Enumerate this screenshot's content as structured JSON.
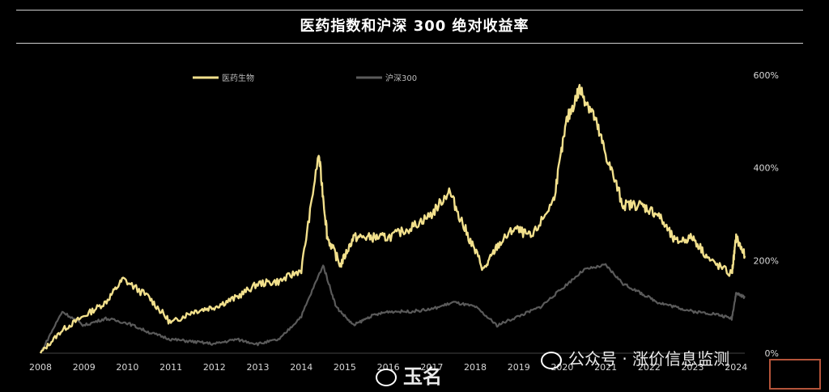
{
  "title": "医药指数和沪深 300 绝对收益率",
  "watermarks": {
    "right_text": "公众号 · 涨价信息监测",
    "center_text": "玉名"
  },
  "chart_data": {
    "type": "line",
    "x_tick_labels": [
      "2008",
      "2009",
      "2010",
      "2011",
      "2012",
      "2013",
      "2014",
      "2015",
      "2016",
      "2017",
      "2018",
      "2019",
      "2020",
      "2021",
      "2022",
      "2023",
      "2024"
    ],
    "y_tick_labels": [
      "0%",
      "200%",
      "400%",
      "600%"
    ],
    "ylim": [
      0,
      600
    ],
    "legend_placement": "top",
    "series": [
      {
        "name": "医药生物",
        "color": "#f2e08c",
        "x": [
          2008.0,
          2008.5,
          2009.0,
          2009.5,
          2009.9,
          2010.5,
          2011.0,
          2011.5,
          2012.0,
          2012.5,
          2013.0,
          2013.5,
          2014.0,
          2014.4,
          2014.6,
          2014.9,
          2015.2,
          2015.6,
          2016.0,
          2016.5,
          2017.0,
          2017.4,
          2017.8,
          2018.2,
          2018.5,
          2018.9,
          2019.3,
          2019.8,
          2020.1,
          2020.4,
          2020.7,
          2021.0,
          2021.4,
          2021.8,
          2022.2,
          2022.6,
          2023.0,
          2023.4,
          2023.9,
          2024.0,
          2024.2
        ],
        "y": [
          0,
          50,
          80,
          110,
          160,
          120,
          65,
          90,
          100,
          120,
          150,
          155,
          180,
          430,
          250,
          190,
          250,
          250,
          250,
          270,
          300,
          350,
          260,
          180,
          230,
          270,
          250,
          330,
          500,
          570,
          520,
          430,
          320,
          320,
          300,
          240,
          250,
          200,
          170,
          250,
          210
        ]
      },
      {
        "name": "沪深300",
        "color": "#5a5a5a",
        "x": [
          2008.0,
          2008.5,
          2009.0,
          2009.5,
          2010.0,
          2010.5,
          2011.0,
          2011.5,
          2012.0,
          2012.5,
          2013.0,
          2013.5,
          2014.0,
          2014.5,
          2014.8,
          2015.2,
          2015.6,
          2016.0,
          2016.5,
          2017.0,
          2017.5,
          2018.0,
          2018.5,
          2019.0,
          2019.5,
          2020.0,
          2020.5,
          2021.0,
          2021.4,
          2021.8,
          2022.2,
          2022.6,
          2023.0,
          2023.5,
          2023.9,
          2024.0,
          2024.2
        ],
        "y": [
          0,
          90,
          60,
          75,
          65,
          45,
          30,
          25,
          20,
          30,
          20,
          30,
          80,
          190,
          100,
          60,
          80,
          90,
          90,
          95,
          110,
          100,
          60,
          80,
          100,
          140,
          180,
          190,
          150,
          130,
          110,
          100,
          90,
          85,
          75,
          130,
          120
        ]
      }
    ]
  }
}
